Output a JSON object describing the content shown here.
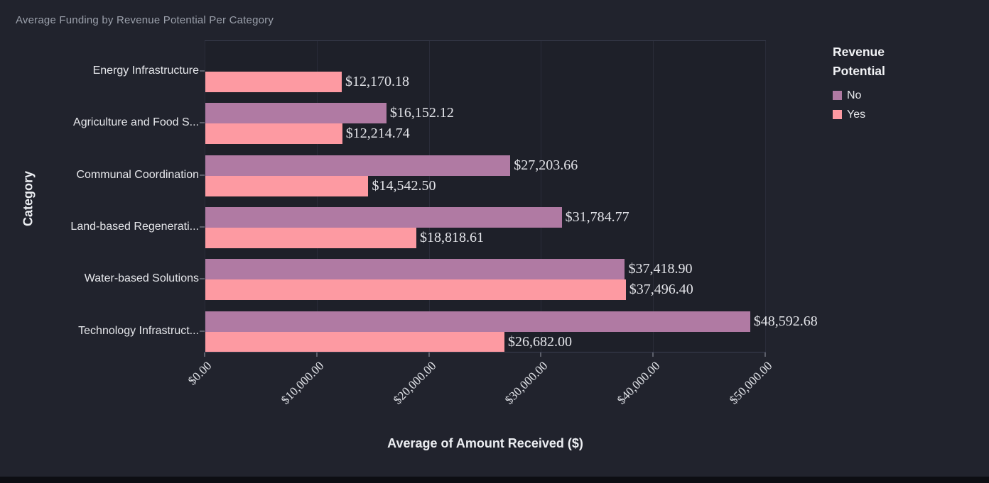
{
  "title": "Average Funding by Revenue Potential Per Category",
  "x_axis": {
    "label": "Average of Amount Received ($)",
    "ticks": [
      "$0.00",
      "$10,000.00",
      "$20,000.00",
      "$30,000.00",
      "$40,000.00",
      "$50,000.00"
    ]
  },
  "y_axis": {
    "label": "Category"
  },
  "legend": {
    "title_line1": "Revenue",
    "title_line2": "Potential",
    "items": [
      {
        "label": "No",
        "color": "#b07aa3"
      },
      {
        "label": "Yes",
        "color": "#fd9aa2"
      }
    ]
  },
  "chart_data": {
    "type": "bar",
    "orientation": "horizontal",
    "title": "Average Funding by Revenue Potential Per Category",
    "xlabel": "Average of Amount Received ($)",
    "ylabel": "Category",
    "xlim": [
      0,
      50000
    ],
    "grid": true,
    "legend_position": "top-right",
    "categories": [
      "Energy Infrastructure",
      "Agriculture and Food S...",
      "Communal Coordination",
      "Land-based Regenerati...",
      "Water-based Solutions",
      "Technology Infrastruct..."
    ],
    "series": [
      {
        "name": "No",
        "color": "#b07aa3",
        "values": [
          null,
          16152.12,
          27203.66,
          31784.77,
          37418.9,
          48592.68
        ],
        "labels": [
          "",
          "$16,152.12",
          "$27,203.66",
          "$31,784.77",
          "$37,418.90",
          "$48,592.68"
        ]
      },
      {
        "name": "Yes",
        "color": "#fd9aa2",
        "values": [
          12170.18,
          12214.74,
          14542.5,
          18818.61,
          37496.4,
          26682.0
        ],
        "labels": [
          "$12,170.18",
          "$12,214.74",
          "$14,542.50",
          "$18,818.61",
          "$37,496.40",
          "$26,682.00"
        ]
      }
    ]
  }
}
